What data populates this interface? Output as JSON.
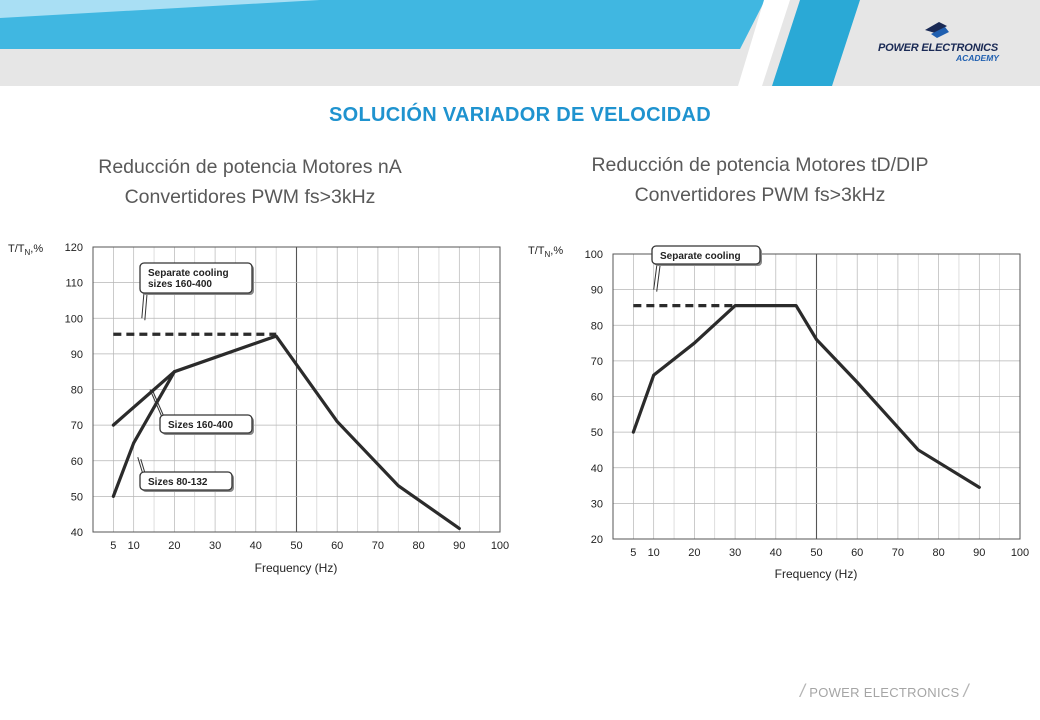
{
  "header": {
    "logo_line1": "POWER ELECTRONICS",
    "logo_line2": "ACADEMY",
    "colors": {
      "light_blue": "#a9dff4",
      "mid_blue": "#2aa9d6",
      "gray": "#e6e6e6"
    }
  },
  "title": "SOLUCIÓN VARIADOR DE VELOCIDAD",
  "subtitles": {
    "left": [
      "Reducción de potencia Motores nA",
      "Convertidores PWM fs>3kHz"
    ],
    "right": [
      "Reducción de potencia Motores tD/DIP",
      "Convertidores PWM fs>3kHz"
    ]
  },
  "footer": {
    "slash_left": "/",
    "text": "POWER ELECTRONICS",
    "slash_right": "/"
  },
  "chart_data": [
    {
      "type": "line",
      "title": "",
      "xlabel": "Frequency (Hz)",
      "ylabel": "T/T",
      "ylabel_sub": "N",
      "ylabel_suffix": ",%",
      "xlim": [
        0,
        100
      ],
      "ylim": [
        40,
        120
      ],
      "xticks": [
        5,
        10,
        20,
        30,
        40,
        50,
        60,
        70,
        80,
        90,
        100
      ],
      "yticks": [
        40,
        50,
        60,
        70,
        80,
        90,
        100,
        110,
        120
      ],
      "grid": true,
      "series": [
        {
          "name": "Separate cooling sizes 160-400",
          "style": "dashed",
          "x": [
            5,
            45
          ],
          "y": [
            95.5,
            95.5
          ]
        },
        {
          "name": "Sizes 160-400",
          "style": "solid",
          "x": [
            5,
            15,
            20,
            30,
            45,
            60,
            70,
            75,
            80,
            90
          ],
          "y": [
            70,
            80,
            85,
            89,
            95,
            71,
            59,
            53,
            49,
            41
          ]
        },
        {
          "name": "Sizes 80-132",
          "style": "solid",
          "x": [
            5,
            10,
            20
          ],
          "y": [
            50,
            65,
            85
          ]
        }
      ],
      "annotations": [
        {
          "lines": [
            "Separate cooling",
            "sizes 160-400"
          ],
          "target": [
            12,
            100
          ]
        },
        {
          "lines": [
            "Sizes 160-400"
          ],
          "target": [
            14,
            80
          ]
        },
        {
          "lines": [
            "Sizes 80-132"
          ],
          "target": [
            11,
            61
          ]
        }
      ]
    },
    {
      "type": "line",
      "title": "",
      "xlabel": "Frequency (Hz)",
      "ylabel": "T/T",
      "ylabel_sub": "N",
      "ylabel_suffix": ",%",
      "xlim": [
        0,
        100
      ],
      "ylim": [
        20,
        100
      ],
      "xticks": [
        5,
        10,
        20,
        30,
        40,
        50,
        60,
        70,
        80,
        90,
        100
      ],
      "yticks": [
        20,
        30,
        40,
        50,
        60,
        70,
        80,
        90,
        100
      ],
      "grid": true,
      "series": [
        {
          "name": "Separate cooling",
          "style": "dashed",
          "x": [
            5,
            30
          ],
          "y": [
            85.5,
            85.5
          ]
        },
        {
          "name": "",
          "style": "solid",
          "x": [
            5,
            10,
            20,
            30,
            45,
            50,
            60,
            75,
            90
          ],
          "y": [
            50,
            66,
            75,
            85.5,
            85.5,
            76,
            64,
            45,
            34.5
          ]
        }
      ],
      "annotations": [
        {
          "lines": [
            "Separate cooling"
          ],
          "target": [
            10,
            90
          ]
        }
      ]
    }
  ]
}
